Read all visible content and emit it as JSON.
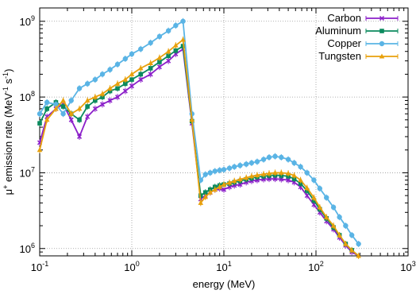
{
  "chart_data": {
    "type": "line",
    "xlabel": "energy (MeV)",
    "ylabel": {
      "main": "μ",
      "sup1": "+",
      "mid": " emission rate (MeV",
      "sup2": "-1",
      "mid2": " s",
      "sup3": "-1",
      "end": ")"
    },
    "x_scale": "log",
    "y_scale": "log",
    "xlim": [
      0.1,
      1000
    ],
    "ylim": [
      800000,
      1500000000
    ],
    "grid": true,
    "legend_position": "top-right",
    "x_ticks": [
      {
        "value": 0.1,
        "base": "10",
        "exp": "-1"
      },
      {
        "value": 1,
        "base": "10",
        "exp": "0"
      },
      {
        "value": 10,
        "base": "10",
        "exp": "1"
      },
      {
        "value": 100,
        "base": "10",
        "exp": "2"
      },
      {
        "value": 1000,
        "base": "10",
        "exp": "3"
      }
    ],
    "y_ticks": [
      {
        "value": 1000000,
        "base": "10",
        "exp": "6"
      },
      {
        "value": 10000000,
        "base": "10",
        "exp": "7"
      },
      {
        "value": 100000000,
        "base": "10",
        "exp": "8"
      },
      {
        "value": 1000000000,
        "base": "10",
        "exp": "9"
      }
    ],
    "x": [
      0.1,
      0.12,
      0.15,
      0.18,
      0.22,
      0.27,
      0.33,
      0.4,
      0.48,
      0.58,
      0.7,
      0.85,
      1.0,
      1.25,
      1.6,
      2.0,
      2.5,
      3.0,
      3.6,
      4.5,
      5.6,
      6.3,
      7.1,
      8.0,
      9.0,
      10,
      11.5,
      13,
      15,
      17.5,
      20,
      23,
      27,
      31,
      36,
      42,
      50,
      58,
      68,
      80,
      95,
      110,
      130,
      155,
      180,
      210,
      245,
      290
    ],
    "series": [
      {
        "name": "Carbon",
        "color": "#8b1fc9",
        "marker": "x",
        "values": [
          25000000,
          55000000,
          70000000,
          80000000,
          50000000,
          30000000,
          55000000,
          70000000,
          80000000,
          90000000,
          100000000,
          120000000,
          140000000,
          170000000,
          200000000,
          250000000,
          300000000,
          370000000,
          430000000,
          45000000,
          4500000,
          5000000,
          5500000,
          6000000,
          6200000,
          6000000,
          6500000,
          6800000,
          7000000,
          7500000,
          7800000,
          8000000,
          8200000,
          8300000,
          8300000,
          8200000,
          8000000,
          7500000,
          6500000,
          5000000,
          3800000,
          3000000,
          2300000,
          1800000,
          1400000,
          1100000,
          900000,
          750000
        ]
      },
      {
        "name": "Aluminum",
        "color": "#0b8a5e",
        "marker": "square",
        "values": [
          45000000,
          70000000,
          85000000,
          75000000,
          60000000,
          50000000,
          75000000,
          90000000,
          100000000,
          120000000,
          130000000,
          150000000,
          170000000,
          200000000,
          240000000,
          290000000,
          350000000,
          410000000,
          470000000,
          48000000,
          5000000,
          5500000,
          6000000,
          6500000,
          6800000,
          7000000,
          7200000,
          7500000,
          7800000,
          8200000,
          8500000,
          8800000,
          9000000,
          9200000,
          9300000,
          9200000,
          9000000,
          8300000,
          7200000,
          5800000,
          4300000,
          3300000,
          2500000,
          1900000,
          1500000,
          1150000,
          950000,
          780000
        ]
      },
      {
        "name": "Copper",
        "color": "#5ab4e5",
        "marker": "circle",
        "values": [
          60000000,
          85000000,
          80000000,
          60000000,
          90000000,
          130000000,
          150000000,
          170000000,
          200000000,
          230000000,
          270000000,
          320000000,
          370000000,
          430000000,
          520000000,
          630000000,
          750000000,
          880000000,
          1000000000,
          60000000,
          8000000,
          9500000,
          10000000,
          10500000,
          10800000,
          11000000,
          11500000,
          12000000,
          12500000,
          13000000,
          13500000,
          14000000,
          15000000,
          16000000,
          16500000,
          16000000,
          15000000,
          13500000,
          12000000,
          10000000,
          8000000,
          6200000,
          4700000,
          3500000,
          2600000,
          2000000,
          1500000,
          1150000
        ]
      },
      {
        "name": "Tungsten",
        "color": "#e8a10c",
        "marker": "triangle",
        "values": [
          20000000,
          50000000,
          70000000,
          90000000,
          60000000,
          70000000,
          90000000,
          100000000,
          110000000,
          130000000,
          150000000,
          170000000,
          200000000,
          240000000,
          280000000,
          330000000,
          400000000,
          480000000,
          570000000,
          50000000,
          4000000,
          4800000,
          5500000,
          6000000,
          6500000,
          7000000,
          7400000,
          7800000,
          8200000,
          8600000,
          9000000,
          9300000,
          9600000,
          9800000,
          10000000,
          10000000,
          9800000,
          9200000,
          8000000,
          6300000,
          4700000,
          3500000,
          2600000,
          2000000,
          1500000,
          1150000,
          950000,
          800000
        ]
      }
    ]
  }
}
